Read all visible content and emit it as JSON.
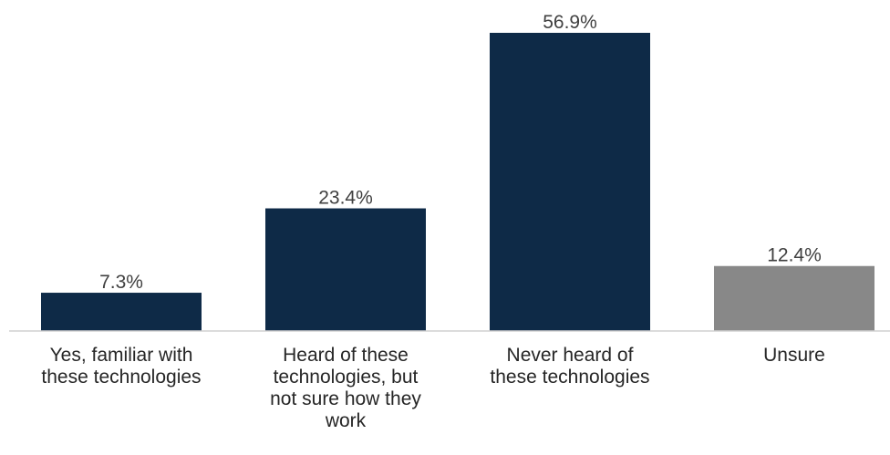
{
  "chart_data": {
    "type": "bar",
    "title": "",
    "xlabel": "",
    "ylabel": "",
    "ylim": [
      0,
      56.9
    ],
    "grid": false,
    "legend": "none",
    "categories": [
      "Yes, familiar with\nthese technologies",
      "Heard of these\ntechnologies, but\nnot sure how they\nwork",
      "Never heard of\nthese technologies",
      "Unsure"
    ],
    "values": [
      7.3,
      23.4,
      56.9,
      12.4
    ],
    "value_labels": [
      "7.3%",
      "23.4%",
      "56.9%",
      "12.4%"
    ],
    "colors": [
      "#0e2a47",
      "#0e2a47",
      "#0e2a47",
      "#888888"
    ]
  }
}
